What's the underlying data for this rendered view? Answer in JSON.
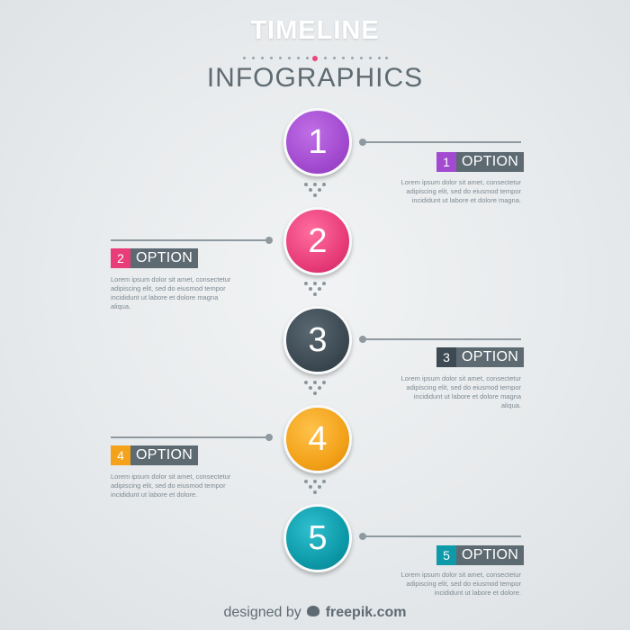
{
  "header": {
    "line1": "TIMELINE",
    "line2": "INFOGRAPHICS"
  },
  "steps": [
    {
      "number": "1",
      "label": "OPTION",
      "color": "#a34bd0",
      "text": "Lorem ipsum dolor sit amet, consectetur adipiscing elit, sed do eiusmod tempor incididunt ut labore et dolore magna."
    },
    {
      "number": "2",
      "label": "OPTION",
      "color": "#e83d79",
      "text": "Lorem ipsum dolor sit amet, consectetur adipiscing elit, sed do eiusmod tempor incididunt ut labore et dolore magna aliqua."
    },
    {
      "number": "3",
      "label": "OPTION",
      "color": "#3d4a53",
      "text": "Lorem ipsum dolor sit amet, consectetur adipiscing elit, sed do eiusmod tempor incididunt ut labore et dolore magna aliqua."
    },
    {
      "number": "4",
      "label": "OPTION",
      "color": "#f3a21a",
      "text": "Lorem ipsum dolor sit amet, consectetur adipiscing elit, sed do eiusmod tempor incididunt ut labore et dolore."
    },
    {
      "number": "5",
      "label": "OPTION",
      "color": "#0e9aa9",
      "text": "Lorem ipsum dolor sit amet, consectetur adipiscing elit, sed do eiusmod tempor incididunt ut labore et dolore."
    }
  ],
  "footer": {
    "designed_by": "designed by",
    "brand": "freepik.com"
  }
}
